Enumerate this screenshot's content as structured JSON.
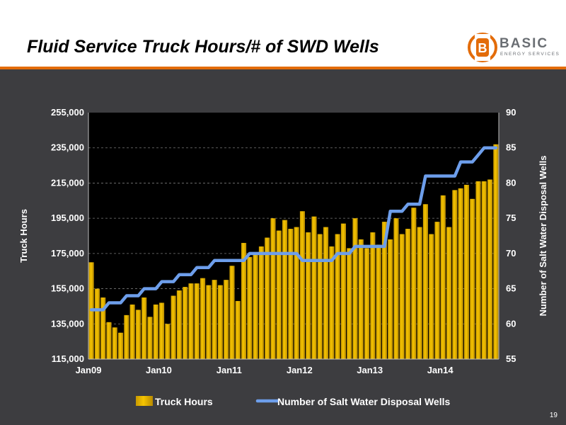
{
  "slide": {
    "title": "Fluid Service Truck Hours/# of SWD Wells",
    "page_number": "19",
    "logo": {
      "word": "BASIC",
      "sub": "ENERGY SERVICES",
      "icon": "b-badge-icon",
      "accent": "#e36c0a"
    }
  },
  "chart_data": {
    "type": "bar",
    "title": "",
    "xlabel": "",
    "ylabel": "Truck Hours",
    "y2label": "Number of Salt Water Disposal Wells",
    "ylim": [
      115000,
      255000
    ],
    "y2lim": [
      55,
      90
    ],
    "yticks": [
      "115,000",
      "135,000",
      "155,000",
      "175,000",
      "195,000",
      "215,000",
      "235,000",
      "255,000"
    ],
    "y2ticks": [
      "55",
      "60",
      "65",
      "70",
      "75",
      "80",
      "85",
      "90"
    ],
    "xtick_labels": [
      {
        "label": "Jan09",
        "index": 0
      },
      {
        "label": "Jan10",
        "index": 12
      },
      {
        "label": "Jan11",
        "index": 24
      },
      {
        "label": "Jan12",
        "index": 36
      },
      {
        "label": "Jan13",
        "index": 48
      },
      {
        "label": "Jan14",
        "index": 60
      }
    ],
    "grid": true,
    "legend": "bottom",
    "colors": {
      "bars": "#f5c400",
      "line": "#6d9eeb",
      "plot_bg": "#000000",
      "grid": "#7a7a7a"
    },
    "series": [
      {
        "name": "Truck Hours",
        "type": "bar",
        "axis": "left",
        "values": [
          170000,
          155000,
          150000,
          136000,
          133000,
          130000,
          140000,
          146000,
          143000,
          150000,
          139000,
          146000,
          147000,
          135000,
          151000,
          154000,
          156000,
          158000,
          158000,
          161000,
          157000,
          160000,
          157000,
          160000,
          168000,
          148000,
          181000,
          173000,
          175000,
          179000,
          184000,
          195000,
          188000,
          194000,
          189000,
          190000,
          199000,
          187000,
          196000,
          186000,
          190000,
          179000,
          186000,
          192000,
          178000,
          195000,
          183000,
          178000,
          187000,
          180000,
          193000,
          183000,
          195000,
          186000,
          189000,
          201000,
          190000,
          203000,
          186000,
          193000,
          208000,
          190000,
          211000,
          212000,
          214000,
          206000,
          216000,
          216000,
          217000,
          237000
        ]
      },
      {
        "name": "Number of Salt Water Disposal Wells",
        "type": "line",
        "axis": "right",
        "values": [
          62,
          62,
          62,
          63,
          63,
          63,
          64,
          64,
          64,
          65,
          65,
          65,
          66,
          66,
          66,
          67,
          67,
          67,
          68,
          68,
          68,
          69,
          69,
          69,
          69,
          69,
          69,
          70,
          70,
          70,
          70,
          70,
          70,
          70,
          70,
          70,
          69,
          69,
          69,
          69,
          69,
          69,
          70,
          70,
          70,
          71,
          71,
          71,
          71,
          71,
          71,
          76,
          76,
          76,
          77,
          77,
          77,
          81,
          81,
          81,
          81,
          81,
          81,
          83,
          83,
          83,
          84,
          85,
          85,
          85
        ]
      }
    ]
  }
}
